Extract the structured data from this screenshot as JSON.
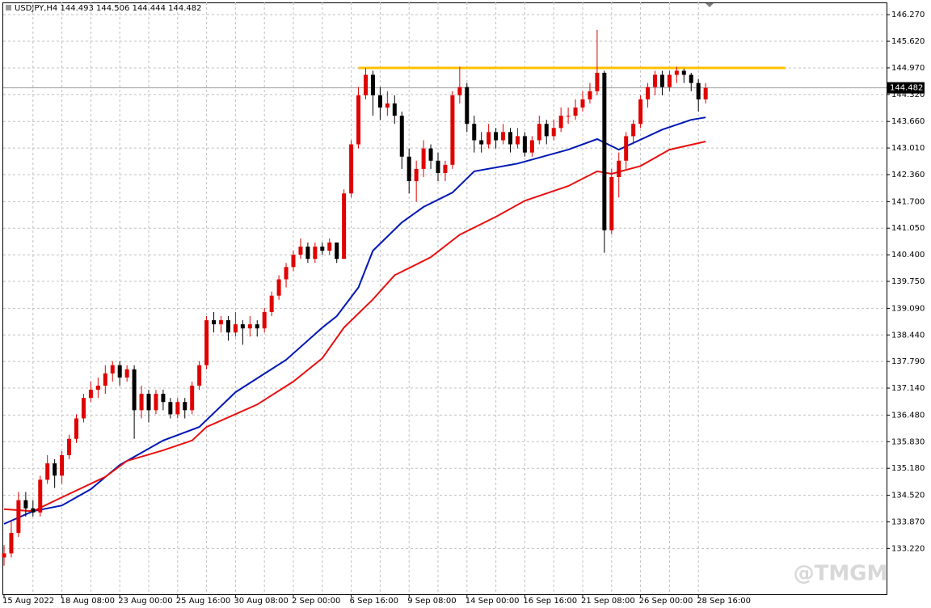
{
  "chart_data": {
    "type": "candlestick",
    "symbol": "USDJPY,H4",
    "quote": {
      "open": 144.493,
      "high": 144.506,
      "low": 144.444,
      "close": 144.482
    },
    "watermark": "@TMGM",
    "up_color": "#e00000",
    "down_color": "#000000",
    "ylim": [
      132.1,
      146.57
    ],
    "yticks": [
      {
        "value": 133.22,
        "label": "133.220"
      },
      {
        "value": 133.87,
        "label": "133.870"
      },
      {
        "value": 134.52,
        "label": "134.520"
      },
      {
        "value": 135.18,
        "label": "135.180"
      },
      {
        "value": 135.83,
        "label": "135.830"
      },
      {
        "value": 136.48,
        "label": "136.480"
      },
      {
        "value": 137.14,
        "label": "137.140"
      },
      {
        "value": 137.79,
        "label": "137.790"
      },
      {
        "value": 138.44,
        "label": "138.440"
      },
      {
        "value": 139.09,
        "label": "139.090"
      },
      {
        "value": 139.75,
        "label": "139.750"
      },
      {
        "value": 140.4,
        "label": "140.400"
      },
      {
        "value": 141.05,
        "label": "141.050"
      },
      {
        "value": 141.7,
        "label": "141.700"
      },
      {
        "value": 142.36,
        "label": "142.360"
      },
      {
        "value": 143.01,
        "label": "143.010"
      },
      {
        "value": 143.66,
        "label": "143.660"
      },
      {
        "value": 144.32,
        "label": "144.320"
      },
      {
        "value": 144.97,
        "label": "144.970"
      },
      {
        "value": 145.62,
        "label": "145.620"
      },
      {
        "value": 146.27,
        "label": "146.270"
      }
    ],
    "grid": true,
    "categories": [
      "15 Aug 2022",
      null,
      null,
      null,
      null,
      null,
      null,
      null,
      "18 Aug 08:00",
      null,
      null,
      null,
      null,
      null,
      null,
      null,
      "23 Aug 00:00",
      null,
      null,
      null,
      null,
      null,
      null,
      null,
      "25 Aug 16:00",
      null,
      null,
      null,
      null,
      null,
      null,
      null,
      "30 Aug 08:00",
      null,
      null,
      null,
      null,
      null,
      null,
      null,
      "2 Sep 00:00",
      null,
      null,
      null,
      null,
      null,
      null,
      null,
      "6 Sep 16:00",
      null,
      null,
      null,
      null,
      null,
      null,
      null,
      "9 Sep 08:00",
      null,
      null,
      null,
      null,
      null,
      null,
      null,
      "14 Sep 00:00",
      null,
      null,
      null,
      null,
      null,
      null,
      null,
      "16 Sep 16:00",
      null,
      null,
      null,
      null,
      null,
      null,
      null,
      "21 Sep 08:00",
      null,
      null,
      null,
      null,
      null,
      null,
      null,
      "26 Sep 00:00",
      null,
      null,
      null,
      null,
      null,
      null,
      null,
      "28 Sep 16:00",
      null
    ],
    "open": [
      133.0,
      133.1,
      133.6,
      134.4,
      134.2,
      134.1,
      134.9,
      135.3,
      135.0,
      135.5,
      135.9,
      136.4,
      136.9,
      137.1,
      137.2,
      137.5,
      137.7,
      137.4,
      137.6,
      136.6,
      137.0,
      136.6,
      137.0,
      136.8,
      136.5,
      136.8,
      136.6,
      137.2,
      137.7,
      138.8,
      138.7,
      138.8,
      138.5,
      138.7,
      138.6,
      138.7,
      138.6,
      139.0,
      139.4,
      139.8,
      140.1,
      140.4,
      140.6,
      140.3,
      140.6,
      140.5,
      140.7,
      140.3,
      141.9,
      143.1,
      144.3,
      144.8,
      144.3,
      144.0,
      144.1,
      143.8,
      142.8,
      142.2,
      142.5,
      143.0,
      142.7,
      142.4,
      142.6,
      144.3,
      144.5,
      143.6,
      143.2,
      143.1,
      143.4,
      143.2,
      143.4,
      143.1,
      143.3,
      142.9,
      143.2,
      143.6,
      143.3,
      143.5,
      143.8,
      143.8,
      144.0,
      144.2,
      144.4,
      144.85,
      141.0,
      142.3,
      142.7,
      143.3,
      143.6,
      144.2,
      144.5,
      144.8,
      144.5,
      144.8,
      144.9,
      144.8,
      144.6,
      144.2
    ],
    "high": [
      133.3,
      133.9,
      134.6,
      134.6,
      134.4,
      135.0,
      135.5,
      135.4,
      135.6,
      136.0,
      136.5,
      137.0,
      137.3,
      137.4,
      137.7,
      137.8,
      137.8,
      137.7,
      137.7,
      137.2,
      137.1,
      137.1,
      137.1,
      136.9,
      136.9,
      136.9,
      137.3,
      137.8,
      138.9,
      139.0,
      138.9,
      138.9,
      139.0,
      138.8,
      138.9,
      138.8,
      139.1,
      139.5,
      139.9,
      140.2,
      140.5,
      140.8,
      140.7,
      140.7,
      140.7,
      140.8,
      140.7,
      142.0,
      143.2,
      144.5,
      144.97,
      144.9,
      144.5,
      144.4,
      144.3,
      143.9,
      143.0,
      142.7,
      143.2,
      143.1,
      142.9,
      142.7,
      144.4,
      145.0,
      144.6,
      143.8,
      143.4,
      143.6,
      143.5,
      143.6,
      143.5,
      143.5,
      143.4,
      143.3,
      143.8,
      143.7,
      143.7,
      144.0,
      144.0,
      144.2,
      144.4,
      144.6,
      145.9,
      144.9,
      142.5,
      142.9,
      143.4,
      143.7,
      144.3,
      144.6,
      144.9,
      144.9,
      144.9,
      145.0,
      144.95,
      144.85,
      144.7,
      144.6
    ],
    "low": [
      132.8,
      133.0,
      133.5,
      134.0,
      134.0,
      134.0,
      134.8,
      134.7,
      134.8,
      135.4,
      135.8,
      136.3,
      136.8,
      136.9,
      137.0,
      137.3,
      137.2,
      137.3,
      135.9,
      136.4,
      136.3,
      136.5,
      136.6,
      136.4,
      136.4,
      136.4,
      136.5,
      137.1,
      137.6,
      138.5,
      138.5,
      138.3,
      138.4,
      138.2,
      138.4,
      138.4,
      138.5,
      138.9,
      139.3,
      139.6,
      140.0,
      140.3,
      140.2,
      140.2,
      140.4,
      140.4,
      140.2,
      140.3,
      141.8,
      143.0,
      144.2,
      143.8,
      143.7,
      143.8,
      143.6,
      142.5,
      141.9,
      141.7,
      142.3,
      142.5,
      142.2,
      142.2,
      142.5,
      144.1,
      143.4,
      142.9,
      142.9,
      143.0,
      143.0,
      143.1,
      142.9,
      143.0,
      142.8,
      142.8,
      143.1,
      143.1,
      143.2,
      143.4,
      143.6,
      143.7,
      143.9,
      144.1,
      144.3,
      140.45,
      140.9,
      141.8,
      142.5,
      143.1,
      143.5,
      144.0,
      144.3,
      144.3,
      144.4,
      144.6,
      144.6,
      144.4,
      143.9,
      144.1
    ],
    "close": [
      133.1,
      133.6,
      134.4,
      134.2,
      134.1,
      134.9,
      135.3,
      135.0,
      135.5,
      135.9,
      136.4,
      136.9,
      137.1,
      137.2,
      137.5,
      137.7,
      137.4,
      137.6,
      136.6,
      137.0,
      136.6,
      137.0,
      136.8,
      136.5,
      136.8,
      136.6,
      137.2,
      137.7,
      138.8,
      138.7,
      138.8,
      138.5,
      138.7,
      138.6,
      138.7,
      138.6,
      139.0,
      139.4,
      139.8,
      140.1,
      140.4,
      140.6,
      140.3,
      140.6,
      140.5,
      140.7,
      140.3,
      141.9,
      143.1,
      144.3,
      144.8,
      144.3,
      144.0,
      144.1,
      143.8,
      142.8,
      142.2,
      142.5,
      143.0,
      142.7,
      142.4,
      142.6,
      144.3,
      144.5,
      143.6,
      143.2,
      143.1,
      143.4,
      143.2,
      143.4,
      143.1,
      143.3,
      142.9,
      143.2,
      143.6,
      143.3,
      143.5,
      143.8,
      143.8,
      144.0,
      144.2,
      144.4,
      144.85,
      141.0,
      142.3,
      142.7,
      143.3,
      143.6,
      144.2,
      144.5,
      144.8,
      144.5,
      144.8,
      144.9,
      144.8,
      144.6,
      144.2,
      144.482
    ],
    "lines": [
      {
        "color": "#0018b4",
        "x": [
          0,
          4,
          8,
          12,
          16,
          22,
          27,
          32,
          35,
          39,
          44,
          46,
          49,
          51,
          55,
          58,
          62,
          65,
          71,
          78,
          82,
          85,
          91,
          95,
          97
        ],
        "values": [
          133.82,
          134.13,
          134.27,
          134.67,
          135.26,
          135.86,
          136.19,
          137.04,
          137.38,
          137.83,
          138.62,
          138.9,
          139.6,
          140.5,
          141.19,
          141.57,
          141.92,
          142.44,
          142.63,
          142.97,
          143.23,
          142.97,
          143.46,
          143.7,
          143.76
        ]
      },
      {
        "color": "#e81010",
        "x": [
          0,
          4,
          8,
          14,
          17,
          22,
          26,
          28,
          35,
          40,
          44,
          47,
          51,
          54,
          59,
          63,
          68,
          72,
          78,
          82,
          84,
          88,
          92,
          97
        ],
        "values": [
          134.18,
          134.13,
          134.47,
          134.97,
          135.36,
          135.62,
          135.86,
          136.19,
          136.74,
          137.3,
          137.87,
          138.62,
          139.31,
          139.9,
          140.34,
          140.89,
          141.33,
          141.72,
          142.08,
          142.44,
          142.38,
          142.57,
          142.97,
          143.17
        ]
      }
    ],
    "hline": {
      "value": 144.97,
      "x": [
        49,
        108
      ],
      "color": "#ffc000"
    },
    "price_line": {
      "value": 144.482,
      "color": "#a0a0a0"
    }
  }
}
